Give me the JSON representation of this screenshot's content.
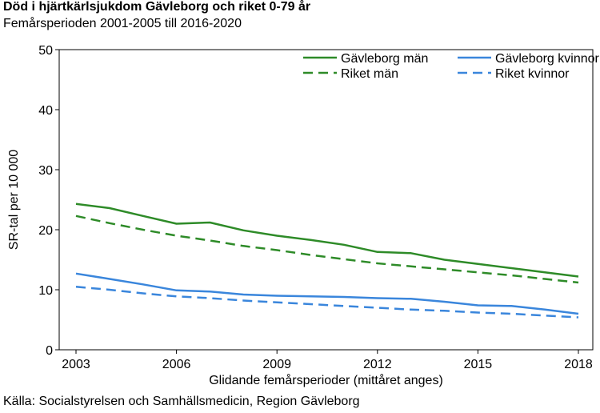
{
  "title": "Död i hjärtkärlsjukdom Gävleborg och riket 0-79 år",
  "subtitle": "Femårsperioden 2001-2005 till 2016-2020",
  "source": "Källa: Socialstyrelsen och Samhällsmedicin, Region Gävleborg",
  "chart_data": {
    "type": "line",
    "title": "Död i hjärtkärlsjukdom Gävleborg och riket 0-79 år",
    "subtitle": "Femårsperioden 2001-2005 till 2016-2020",
    "xlabel": "Glidande femårsperioder (mittåret anges)",
    "ylabel": "SR-tal per 10 000",
    "xlim": [
      2003,
      2018
    ],
    "ylim": [
      0,
      50
    ],
    "xticks": [
      2003,
      2006,
      2009,
      2012,
      2015,
      2018
    ],
    "yticks": [
      0,
      10,
      20,
      30,
      40,
      50
    ],
    "grid": false,
    "legend_position": "top-right",
    "x": [
      2003,
      2004,
      2005,
      2006,
      2007,
      2008,
      2009,
      2010,
      2011,
      2012,
      2013,
      2014,
      2015,
      2016,
      2017,
      2018
    ],
    "series": [
      {
        "name": "Gävleborg män",
        "color": "#2e8b28",
        "dash": "solid",
        "values": [
          24.3,
          23.6,
          22.3,
          21.0,
          21.2,
          19.9,
          19.0,
          18.3,
          17.5,
          16.3,
          16.1,
          15.0,
          14.3,
          13.6,
          12.9,
          12.2
        ]
      },
      {
        "name": "Riket män",
        "color": "#2e8b28",
        "dash": "dashed",
        "values": [
          22.3,
          21.1,
          20.0,
          19.0,
          18.2,
          17.3,
          16.6,
          15.8,
          15.1,
          14.4,
          13.9,
          13.4,
          12.9,
          12.4,
          11.8,
          11.2
        ]
      },
      {
        "name": "Gävleborg kvinnor",
        "color": "#3a86dc",
        "dash": "solid",
        "values": [
          12.7,
          11.8,
          10.9,
          9.9,
          9.7,
          9.2,
          9.0,
          8.9,
          8.8,
          8.6,
          8.5,
          8.0,
          7.4,
          7.3,
          6.7,
          6.0
        ]
      },
      {
        "name": "Riket kvinnor",
        "color": "#3a86dc",
        "dash": "dashed",
        "values": [
          10.5,
          10.0,
          9.4,
          8.9,
          8.6,
          8.2,
          7.9,
          7.6,
          7.3,
          7.0,
          6.7,
          6.5,
          6.2,
          6.0,
          5.7,
          5.4
        ]
      }
    ]
  }
}
